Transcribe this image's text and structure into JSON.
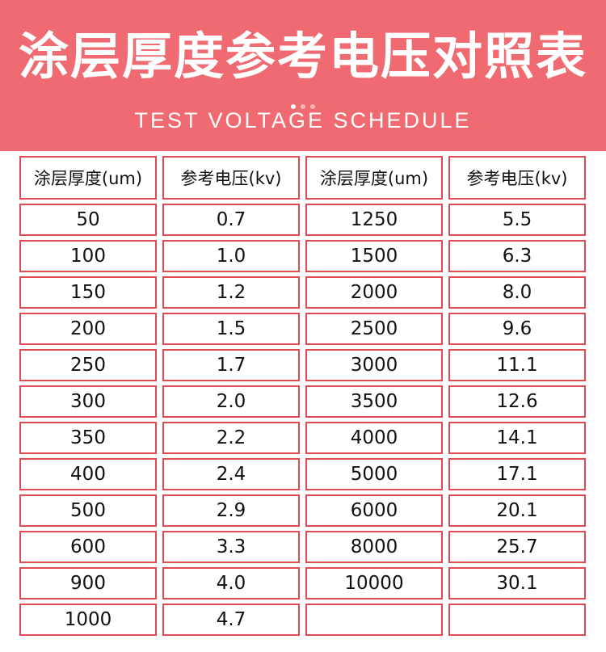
{
  "banner": {
    "title": "涂层厚度参考电压对照表",
    "subtitle": "TEST VOLTAGE SCHEDULE"
  },
  "table": {
    "headers": [
      "涂层厚度(um)",
      "参考电压(kv)",
      "涂层厚度(um)",
      "参考电压(kv)"
    ],
    "rows": [
      [
        "50",
        "0.7",
        "1250",
        "5.5"
      ],
      [
        "100",
        "1.0",
        "1500",
        "6.3"
      ],
      [
        "150",
        "1.2",
        "2000",
        "8.0"
      ],
      [
        "200",
        "1.5",
        "2500",
        "9.6"
      ],
      [
        "250",
        "1.7",
        "3000",
        "11.1"
      ],
      [
        "300",
        "2.0",
        "3500",
        "12.6"
      ],
      [
        "350",
        "2.2",
        "4000",
        "14.1"
      ],
      [
        "400",
        "2.4",
        "5000",
        "17.1"
      ],
      [
        "500",
        "2.9",
        "6000",
        "20.1"
      ],
      [
        "600",
        "3.3",
        "8000",
        "25.7"
      ],
      [
        "900",
        "4.0",
        "10000",
        "30.1"
      ],
      [
        "1000",
        "4.7",
        "",
        ""
      ]
    ]
  },
  "colors": {
    "banner": "#f06b71",
    "border": "#e04a51"
  }
}
